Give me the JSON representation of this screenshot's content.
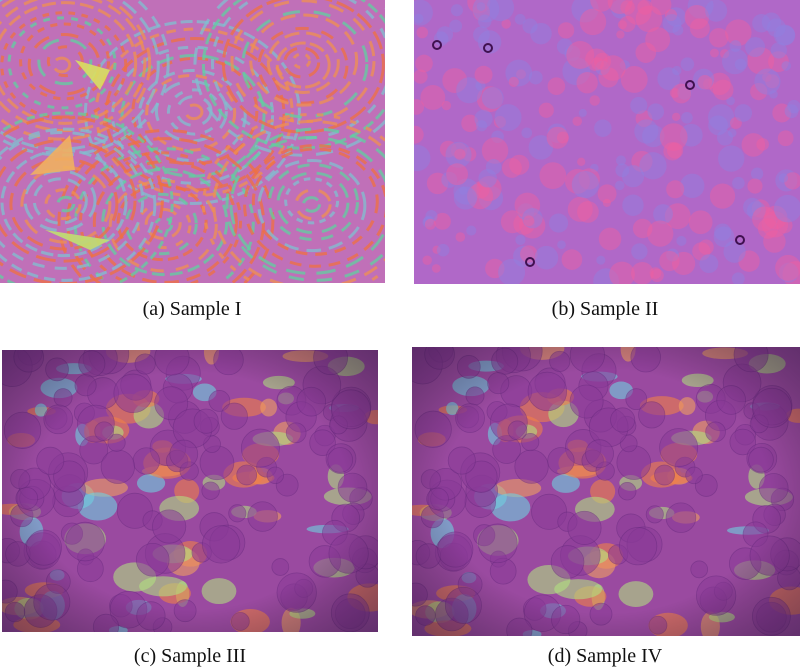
{
  "figure": {
    "panels": [
      {
        "caption": "(a) Sample I"
      },
      {
        "caption": "(b) Sample II"
      },
      {
        "caption": "(c) Sample III"
      },
      {
        "caption": "(d) Sample IV"
      }
    ]
  }
}
